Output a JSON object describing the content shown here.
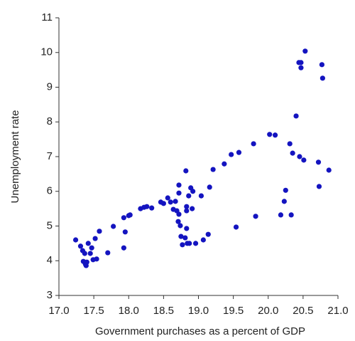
{
  "chart_data": {
    "type": "scatter",
    "xlabel": "Government purchases as a percent of GDP",
    "ylabel": "Unemployment rate",
    "color": "#1414c0",
    "xlim": [
      17,
      21
    ],
    "ylim": [
      3,
      11
    ],
    "xticks": [
      {
        "value": 17,
        "label": "17.0"
      },
      {
        "value": 17.5,
        "label": "17.5"
      },
      {
        "value": 18,
        "label": "18.0"
      },
      {
        "value": 18.5,
        "label": "18.5"
      },
      {
        "value": 19,
        "label": "19.0"
      },
      {
        "value": 19.5,
        "label": "19.5"
      },
      {
        "value": 20,
        "label": "20.0"
      },
      {
        "value": 20.5,
        "label": "20.5"
      },
      {
        "value": 21,
        "label": "21.0"
      }
    ],
    "yticks": [
      3,
      4,
      5,
      6,
      7,
      8,
      9,
      10,
      11
    ],
    "x": [
      17.24,
      17.31,
      17.34,
      17.37,
      17.35,
      17.38,
      17.39,
      17.4,
      17.42,
      17.45,
      17.47,
      17.49,
      17.54,
      17.52,
      17.58,
      17.7,
      17.78,
      17.93,
      17.95,
      17.93,
      18.0,
      18.02,
      18.17,
      18.22,
      18.26,
      18.33,
      18.46,
      18.5,
      18.56,
      18.6,
      18.64,
      18.67,
      18.69,
      18.72,
      18.72,
      18.72,
      18.71,
      18.74,
      18.75,
      18.77,
      18.81,
      18.82,
      18.83,
      18.83,
      18.83,
      18.84,
      18.86,
      18.87,
      18.89,
      18.91,
      18.92,
      18.96,
      19.04,
      19.07,
      19.14,
      19.16,
      19.21,
      19.37,
      19.47,
      19.58,
      19.54,
      19.79,
      19.82,
      20.02,
      20.1,
      20.31,
      20.35,
      20.4,
      20.45,
      20.51,
      20.25,
      20.23,
      20.33,
      20.18,
      20.47,
      20.44,
      20.47,
      20.53,
      20.77,
      20.78,
      20.72,
      20.73,
      20.87
    ],
    "y": [
      4.6,
      4.42,
      4.29,
      4.21,
      3.98,
      3.9,
      3.86,
      3.96,
      4.5,
      4.21,
      4.37,
      4.03,
      4.05,
      4.64,
      4.85,
      4.23,
      4.99,
      4.37,
      4.83,
      5.24,
      5.3,
      5.32,
      5.5,
      5.54,
      5.56,
      5.52,
      5.69,
      5.65,
      5.81,
      5.69,
      5.48,
      5.71,
      5.44,
      6.18,
      5.95,
      5.34,
      5.13,
      5.01,
      4.7,
      4.46,
      4.66,
      6.59,
      5.56,
      5.44,
      4.93,
      4.5,
      5.87,
      4.5,
      6.1,
      5.5,
      6.0,
      4.5,
      5.87,
      4.6,
      4.76,
      6.12,
      6.63,
      6.79,
      7.06,
      7.12,
      4.97,
      7.37,
      5.28,
      7.64,
      7.62,
      7.37,
      7.1,
      8.17,
      7.0,
      6.9,
      6.03,
      5.71,
      5.32,
      5.32,
      9.71,
      9.71,
      9.56,
      10.04,
      9.65,
      9.26,
      6.84,
      6.14,
      6.61
    ]
  }
}
